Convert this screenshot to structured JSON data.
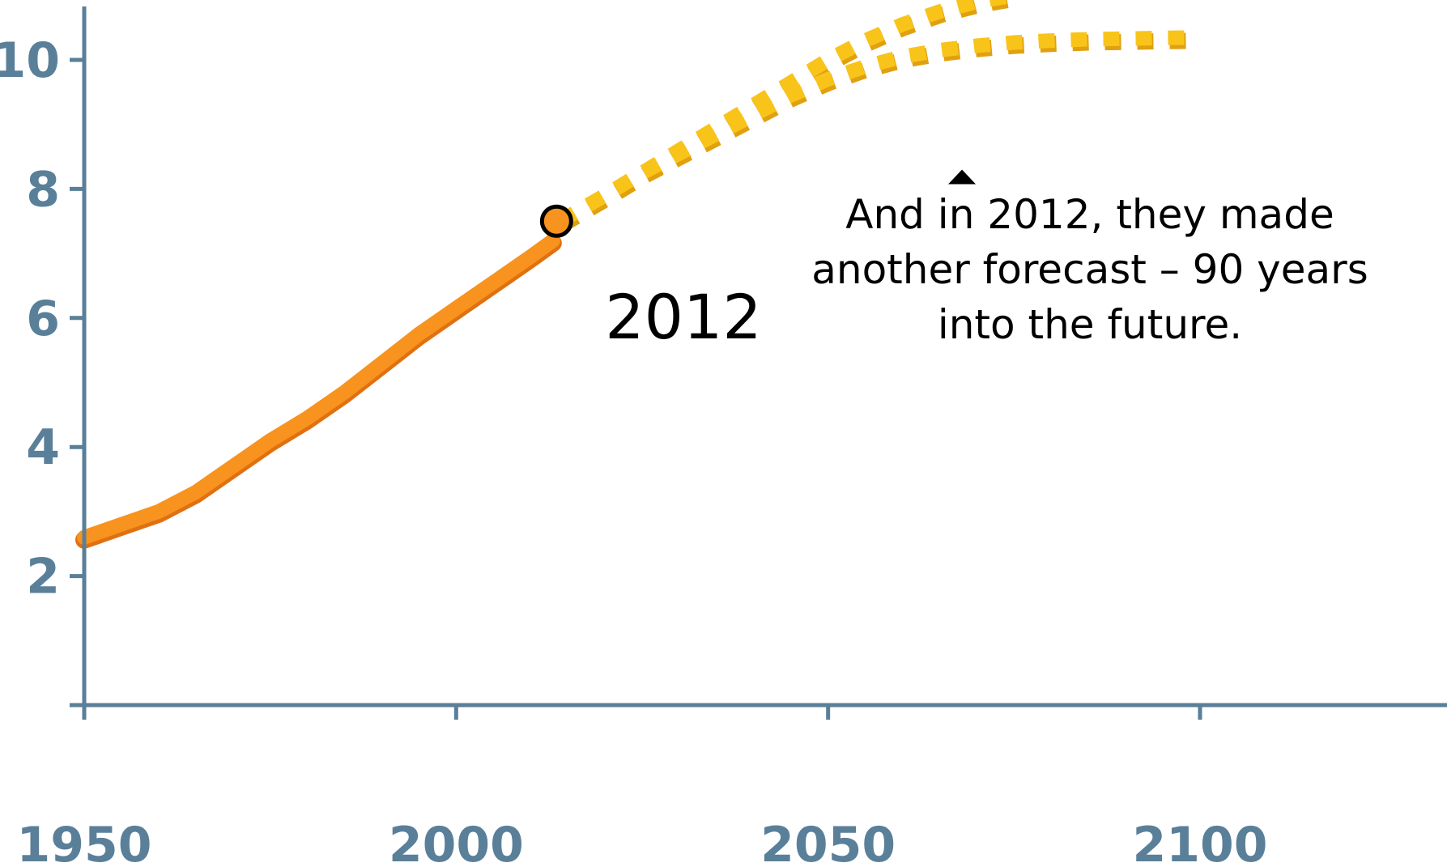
{
  "chart_data": {
    "type": "line",
    "title": "",
    "xlabel": "",
    "ylabel": "",
    "xlim": [
      1950,
      2105
    ],
    "ylim": [
      0,
      10.7
    ],
    "x_ticks": [
      1950,
      2000,
      2050,
      2100
    ],
    "y_ticks": [
      2,
      4,
      6,
      8,
      10
    ],
    "grid": false,
    "series": [
      {
        "style": "solid",
        "color": "#f7931e",
        "points": [
          [
            1950,
            2.6
          ],
          [
            1955,
            2.8
          ],
          [
            1960,
            3.0
          ],
          [
            1965,
            3.3
          ],
          [
            1970,
            3.7
          ],
          [
            1975,
            4.1
          ],
          [
            1980,
            4.45
          ],
          [
            1985,
            4.85
          ],
          [
            1990,
            5.3
          ],
          [
            1995,
            5.75
          ],
          [
            2000,
            6.15
          ],
          [
            2005,
            6.55
          ],
          [
            2010,
            6.95
          ],
          [
            2013,
            7.2
          ]
        ]
      },
      {
        "style": "dashed",
        "color": "#f9c41a",
        "points": [
          [
            2014,
            7.5
          ],
          [
            2020,
            7.9
          ],
          [
            2025,
            8.25
          ],
          [
            2030,
            8.6
          ],
          [
            2035,
            8.95
          ],
          [
            2040,
            9.3
          ],
          [
            2045,
            9.65
          ],
          [
            2050,
            10.0
          ],
          [
            2055,
            10.3
          ],
          [
            2060,
            10.55
          ],
          [
            2065,
            10.75
          ],
          [
            2070,
            10.9
          ],
          [
            2075,
            11.0
          ]
        ]
      },
      {
        "style": "dashed",
        "color": "#f9c41a",
        "points": [
          [
            2014,
            7.5
          ],
          [
            2020,
            7.9
          ],
          [
            2025,
            8.25
          ],
          [
            2030,
            8.55
          ],
          [
            2035,
            8.85
          ],
          [
            2040,
            9.15
          ],
          [
            2045,
            9.45
          ],
          [
            2050,
            9.7
          ],
          [
            2055,
            9.9
          ],
          [
            2060,
            10.05
          ],
          [
            2065,
            10.15
          ],
          [
            2070,
            10.22
          ],
          [
            2075,
            10.27
          ],
          [
            2080,
            10.3
          ],
          [
            2085,
            10.32
          ],
          [
            2090,
            10.33
          ],
          [
            2095,
            10.34
          ],
          [
            2100,
            10.35
          ]
        ]
      }
    ],
    "highlight_point": {
      "x": 2013.5,
      "y": 7.5,
      "label": "2012"
    },
    "annotation": {
      "lines": [
        "And in 2012, they made",
        "another forecast – 90 years",
        "into the future."
      ],
      "anchor": {
        "x": 2068,
        "y": 8.3
      }
    }
  },
  "colors": {
    "axis": "#5a7f99",
    "history": "#f7931e",
    "history_edge": "#e07010",
    "forecast": "#f9c41a",
    "forecast_shadow": "#e0a010"
  }
}
